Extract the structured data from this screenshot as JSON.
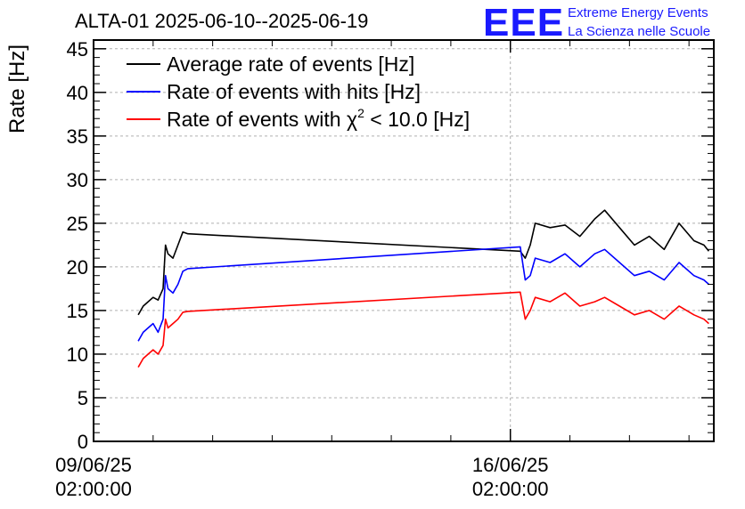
{
  "chart_data": {
    "type": "line",
    "title": "ALTA-01 2025-06-10--2025-06-19",
    "ylabel": "Rate [Hz]",
    "xlabel": "",
    "ylim": [
      0,
      46
    ],
    "y_ticks": [
      0,
      5,
      10,
      15,
      20,
      25,
      30,
      35,
      40,
      45
    ],
    "y_tick_labels": [
      "0",
      "5",
      "10",
      "15",
      "20",
      "25",
      "30",
      "35",
      "40",
      "45"
    ],
    "xlim": [
      "2025-06-09T02:00:00",
      "2025-06-19T12:00:00"
    ],
    "x_ticks": [
      {
        "x": "2025-06-09T02:00:00",
        "date": "09/06/25",
        "time": "02:00:00"
      },
      {
        "x": "2025-06-16T02:00:00",
        "date": "16/06/25",
        "time": "02:00:00"
      }
    ],
    "grid": true,
    "legend_position": "top-left",
    "series": [
      {
        "name": "Average rate of events [Hz]",
        "color": "#000000",
        "points": [
          [
            "2025-06-09T20:00",
            14.5
          ],
          [
            "2025-06-09T22:00",
            15.5
          ],
          [
            "2025-06-10T00:00",
            16.0
          ],
          [
            "2025-06-10T02:00",
            16.5
          ],
          [
            "2025-06-10T04:00",
            16.2
          ],
          [
            "2025-06-10T06:00",
            17.5
          ],
          [
            "2025-06-10T07:00",
            22.5
          ],
          [
            "2025-06-10T08:00",
            21.5
          ],
          [
            "2025-06-10T10:00",
            21.0
          ],
          [
            "2025-06-10T12:00",
            22.5
          ],
          [
            "2025-06-10T14:00",
            24.0
          ],
          [
            "2025-06-10T16:00",
            23.8
          ],
          [
            "2025-06-16T06:00",
            21.8
          ],
          [
            "2025-06-16T08:00",
            21.0
          ],
          [
            "2025-06-16T10:00",
            22.5
          ],
          [
            "2025-06-16T12:00",
            25.0
          ],
          [
            "2025-06-16T18:00",
            24.5
          ],
          [
            "2025-06-17T00:00",
            24.8
          ],
          [
            "2025-06-17T06:00",
            23.5
          ],
          [
            "2025-06-17T12:00",
            25.5
          ],
          [
            "2025-06-17T16:00",
            26.5
          ],
          [
            "2025-06-17T22:00",
            24.5
          ],
          [
            "2025-06-18T04:00",
            22.5
          ],
          [
            "2025-06-18T10:00",
            23.5
          ],
          [
            "2025-06-18T16:00",
            22.0
          ],
          [
            "2025-06-18T22:00",
            25.0
          ],
          [
            "2025-06-19T04:00",
            23.0
          ],
          [
            "2025-06-19T08:00",
            22.5
          ],
          [
            "2025-06-19T10:00",
            21.8
          ]
        ]
      },
      {
        "name": "Rate of events with hits [Hz]",
        "color": "#0000ff",
        "points": [
          [
            "2025-06-09T20:00",
            11.5
          ],
          [
            "2025-06-09T22:00",
            12.5
          ],
          [
            "2025-06-10T00:00",
            13.0
          ],
          [
            "2025-06-10T02:00",
            13.5
          ],
          [
            "2025-06-10T04:00",
            12.5
          ],
          [
            "2025-06-10T06:00",
            14.0
          ],
          [
            "2025-06-10T07:00",
            19.0
          ],
          [
            "2025-06-10T08:00",
            17.5
          ],
          [
            "2025-06-10T10:00",
            17.0
          ],
          [
            "2025-06-10T12:00",
            18.0
          ],
          [
            "2025-06-10T14:00",
            19.5
          ],
          [
            "2025-06-10T16:00",
            19.8
          ],
          [
            "2025-06-16T06:00",
            22.3
          ],
          [
            "2025-06-16T08:00",
            18.5
          ],
          [
            "2025-06-16T10:00",
            19.0
          ],
          [
            "2025-06-16T12:00",
            21.0
          ],
          [
            "2025-06-16T18:00",
            20.5
          ],
          [
            "2025-06-17T00:00",
            21.5
          ],
          [
            "2025-06-17T06:00",
            20.0
          ],
          [
            "2025-06-17T12:00",
            21.5
          ],
          [
            "2025-06-17T16:00",
            22.0
          ],
          [
            "2025-06-17T22:00",
            20.5
          ],
          [
            "2025-06-18T04:00",
            19.0
          ],
          [
            "2025-06-18T10:00",
            19.5
          ],
          [
            "2025-06-18T16:00",
            18.5
          ],
          [
            "2025-06-18T22:00",
            20.5
          ],
          [
            "2025-06-19T04:00",
            19.0
          ],
          [
            "2025-06-19T08:00",
            18.5
          ],
          [
            "2025-06-19T10:00",
            18.0
          ]
        ]
      },
      {
        "name": "Rate of events with χ2 < 10.0 [Hz]",
        "color": "#ff0000",
        "points": [
          [
            "2025-06-09T20:00",
            8.5
          ],
          [
            "2025-06-09T22:00",
            9.5
          ],
          [
            "2025-06-10T00:00",
            10.0
          ],
          [
            "2025-06-10T02:00",
            10.5
          ],
          [
            "2025-06-10T04:00",
            10.0
          ],
          [
            "2025-06-10T06:00",
            11.0
          ],
          [
            "2025-06-10T07:00",
            14.0
          ],
          [
            "2025-06-10T08:00",
            13.0
          ],
          [
            "2025-06-10T10:00",
            13.5
          ],
          [
            "2025-06-10T12:00",
            14.0
          ],
          [
            "2025-06-10T14:00",
            14.8
          ],
          [
            "2025-06-10T16:00",
            14.9
          ],
          [
            "2025-06-16T06:00",
            17.1
          ],
          [
            "2025-06-16T08:00",
            14.0
          ],
          [
            "2025-06-16T10:00",
            15.0
          ],
          [
            "2025-06-16T12:00",
            16.5
          ],
          [
            "2025-06-16T18:00",
            16.0
          ],
          [
            "2025-06-17T00:00",
            17.0
          ],
          [
            "2025-06-17T06:00",
            15.5
          ],
          [
            "2025-06-17T12:00",
            16.0
          ],
          [
            "2025-06-17T16:00",
            16.5
          ],
          [
            "2025-06-17T22:00",
            15.5
          ],
          [
            "2025-06-18T04:00",
            14.5
          ],
          [
            "2025-06-18T10:00",
            15.0
          ],
          [
            "2025-06-18T16:00",
            14.0
          ],
          [
            "2025-06-18T22:00",
            15.5
          ],
          [
            "2025-06-19T04:00",
            14.5
          ],
          [
            "2025-06-19T08:00",
            14.0
          ],
          [
            "2025-06-19T10:00",
            13.5
          ]
        ]
      }
    ]
  },
  "legend": {
    "entry_1": "Average rate of events [Hz]",
    "entry_2": "Rate of events with hits [Hz]",
    "entry_3_prefix": "Rate of events with χ",
    "entry_3_sup": "2",
    "entry_3_suffix": " < 10.0 [Hz]"
  },
  "logo": {
    "letters": "EEE",
    "line_1": "Extreme Energy Events",
    "line_2": "La Scienza nelle Scuole",
    "color": "#1a1aff"
  }
}
